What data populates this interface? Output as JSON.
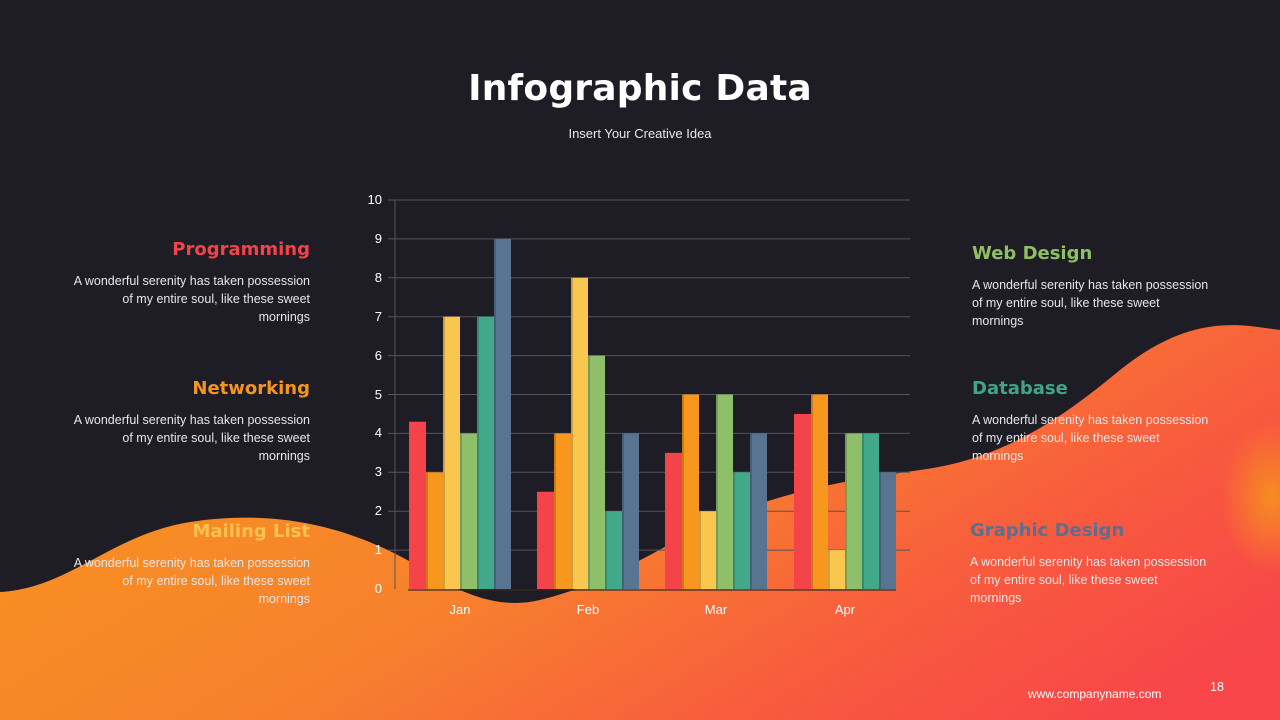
{
  "slide": {
    "title": "Infographic Data",
    "subtitle": "Insert Your Creative Idea",
    "footer_url": "www.companyname.com",
    "page_number": "18"
  },
  "categories_left": [
    {
      "title": "Programming",
      "color": "#f0434a",
      "description": "A wonderful serenity has taken possession of my entire soul, like these sweet mornings"
    },
    {
      "title": "Networking",
      "color": "#f7941d",
      "description": "A wonderful serenity has taken possession of my entire soul, like these sweet mornings"
    },
    {
      "title": "Mailing List",
      "color": "#fbc14f",
      "description": "A wonderful serenity has taken possession of my entire soul, like these sweet mornings"
    }
  ],
  "categories_right": [
    {
      "title": "Web Design",
      "color": "#8fbf62",
      "description": "A wonderful serenity has taken possession of my entire soul, like these sweet mornings"
    },
    {
      "title": "Database",
      "color": "#3fa586",
      "description": "A wonderful serenity has taken possession of my entire soul, like these sweet mornings"
    },
    {
      "title": "Graphic Design",
      "color": "#5b6f8e",
      "description": "A wonderful serenity has taken possession of my entire soul, like these sweet mornings"
    }
  ],
  "colors": {
    "background": "#1e1d26",
    "wave_start": "#f7941d",
    "wave_end": "#f7454a",
    "gridline": "#55545e"
  },
  "chart_data": {
    "type": "bar",
    "title": "",
    "xlabel": "",
    "ylabel": "",
    "ylim": [
      0,
      10
    ],
    "yticks": [
      0,
      1,
      2,
      3,
      4,
      5,
      6,
      7,
      8,
      9,
      10
    ],
    "grid": true,
    "legend": "none (categories described in side text blocks)",
    "categories": [
      "Jan",
      "Feb",
      "Mar",
      "Apr"
    ],
    "series": [
      {
        "name": "Programming",
        "color": "#f5434a",
        "values": [
          4.3,
          2.5,
          3.5,
          4.5
        ]
      },
      {
        "name": "Networking",
        "color": "#f7971e",
        "values": [
          3,
          4,
          5,
          5
        ]
      },
      {
        "name": "Mailing List",
        "color": "#f9c64f",
        "values": [
          7,
          8,
          2,
          1
        ]
      },
      {
        "name": "Web Design",
        "color": "#8fbf6a",
        "values": [
          4,
          6,
          5,
          4
        ]
      },
      {
        "name": "Database",
        "color": "#41a98a",
        "values": [
          7,
          2,
          3,
          4
        ]
      },
      {
        "name": "Graphic Design",
        "color": "#587490",
        "values": [
          9,
          4,
          4,
          3
        ]
      }
    ]
  }
}
